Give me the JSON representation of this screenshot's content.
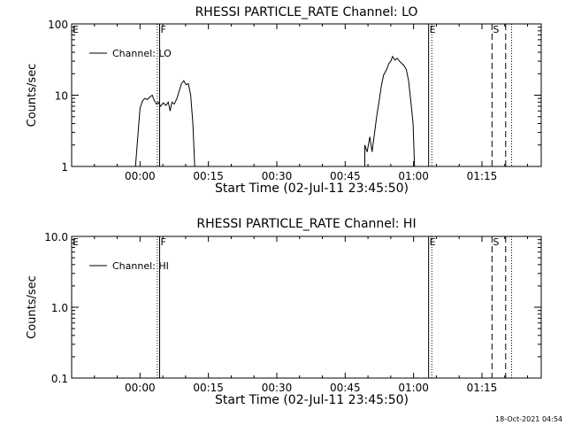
{
  "chart_data": [
    {
      "type": "line",
      "title": "RHESSI PARTICLE_RATE Channel: LO",
      "xlabel": "Start Time (02-Jul-11 23:45:50)",
      "ylabel": "Counts/sec",
      "y_scale": "log",
      "ylim": [
        1,
        100
      ],
      "xlim_minutes": [
        -15,
        88
      ],
      "xticks": [
        {
          "label": "00:00",
          "minutes": 0
        },
        {
          "label": "00:15",
          "minutes": 15
        },
        {
          "label": "00:30",
          "minutes": 30
        },
        {
          "label": "00:45",
          "minutes": 45
        },
        {
          "label": "01:00",
          "minutes": 60
        },
        {
          "label": "01:15",
          "minutes": 75
        }
      ],
      "yticks": [
        {
          "label": "1",
          "value": 1
        },
        {
          "label": "10",
          "value": 10
        },
        {
          "label": "100",
          "value": 100
        }
      ],
      "legend": {
        "label": "Channel: LO",
        "position": "top-left"
      },
      "markers": [
        {
          "label": "E",
          "minutes": -15,
          "style": "none"
        },
        {
          "label": "F",
          "minutes": 4.3,
          "style": "solid"
        },
        {
          "label": "",
          "minutes": 3.8,
          "style": "dotted"
        },
        {
          "label": "E",
          "minutes": 63.3,
          "style": "solid"
        },
        {
          "label": "",
          "minutes": 64.0,
          "style": "dotted"
        },
        {
          "label": "S",
          "minutes": 77.2,
          "style": "dashed"
        },
        {
          "label": "",
          "minutes": 80.2,
          "style": "dashed"
        },
        {
          "label": "",
          "minutes": 81.5,
          "style": "dotted"
        }
      ],
      "series": [
        {
          "name": "Channel: LO",
          "segments": [
            [
              [
                -1,
                1
              ],
              [
                0,
                6.5
              ],
              [
                0.5,
                8.2
              ],
              [
                1,
                9
              ],
              [
                1.6,
                8.7
              ],
              [
                2.2,
                9.5
              ],
              [
                2.7,
                10
              ],
              [
                3.1,
                8.5
              ],
              [
                3.6,
                7.5
              ],
              [
                4,
                8
              ],
              [
                4.5,
                7
              ],
              [
                5.1,
                7.8
              ],
              [
                5.7,
                7.2
              ],
              [
                6.2,
                8
              ],
              [
                6.6,
                6
              ],
              [
                7,
                8
              ],
              [
                7.5,
                7.5
              ],
              [
                8.1,
                9
              ],
              [
                8.6,
                11.5
              ],
              [
                9.1,
                14.5
              ],
              [
                9.6,
                16
              ],
              [
                10.1,
                14
              ],
              [
                10.6,
                14.5
              ],
              [
                11.1,
                10
              ],
              [
                11.6,
                4
              ],
              [
                12,
                1
              ]
            ],
            [
              [
                49.3,
                1
              ],
              [
                49.3,
                2
              ],
              [
                49.8,
                1.6
              ],
              [
                50.4,
                2.6
              ],
              [
                50.9,
                1.6
              ],
              [
                51.4,
                2.8
              ],
              [
                51.9,
                5
              ],
              [
                52.4,
                8
              ],
              [
                52.9,
                13
              ],
              [
                53.4,
                19
              ],
              [
                54.1,
                23
              ],
              [
                54.6,
                28
              ],
              [
                55,
                30
              ],
              [
                55.4,
                35
              ],
              [
                55.9,
                31
              ],
              [
                56.4,
                33
              ],
              [
                56.9,
                30
              ],
              [
                57.4,
                28
              ],
              [
                57.9,
                26
              ],
              [
                58.4,
                23
              ],
              [
                58.9,
                16
              ],
              [
                59.4,
                8
              ],
              [
                59.9,
                4
              ],
              [
                60.2,
                1
              ]
            ]
          ]
        }
      ]
    },
    {
      "type": "line",
      "title": "RHESSI PARTICLE_RATE Channel: HI",
      "xlabel": "Start Time (02-Jul-11 23:45:50)",
      "ylabel": "Counts/sec",
      "y_scale": "log",
      "ylim": [
        0.1,
        10
      ],
      "xlim_minutes": [
        -15,
        88
      ],
      "xticks": [
        {
          "label": "00:00",
          "minutes": 0
        },
        {
          "label": "00:15",
          "minutes": 15
        },
        {
          "label": "00:30",
          "minutes": 30
        },
        {
          "label": "00:45",
          "minutes": 45
        },
        {
          "label": "01:00",
          "minutes": 60
        },
        {
          "label": "01:15",
          "minutes": 75
        }
      ],
      "yticks": [
        {
          "label": "0.1",
          "value": 0.1
        },
        {
          "label": "1.0",
          "value": 1
        },
        {
          "label": "10.0",
          "value": 10
        }
      ],
      "legend": {
        "label": "Channel: HI",
        "position": "top-left"
      },
      "markers": [
        {
          "label": "E",
          "minutes": -15,
          "style": "none"
        },
        {
          "label": "F",
          "minutes": 4.3,
          "style": "solid"
        },
        {
          "label": "",
          "minutes": 3.8,
          "style": "dotted"
        },
        {
          "label": "E",
          "minutes": 63.3,
          "style": "solid"
        },
        {
          "label": "",
          "minutes": 64.0,
          "style": "dotted"
        },
        {
          "label": "S",
          "minutes": 77.2,
          "style": "dashed"
        },
        {
          "label": "",
          "minutes": 80.2,
          "style": "dashed"
        },
        {
          "label": "",
          "minutes": 81.5,
          "style": "dotted"
        }
      ],
      "series": [
        {
          "name": "Channel: HI",
          "segments": []
        }
      ]
    }
  ],
  "footer": {
    "date_stamp": "18-Oct-2021 04:54"
  }
}
